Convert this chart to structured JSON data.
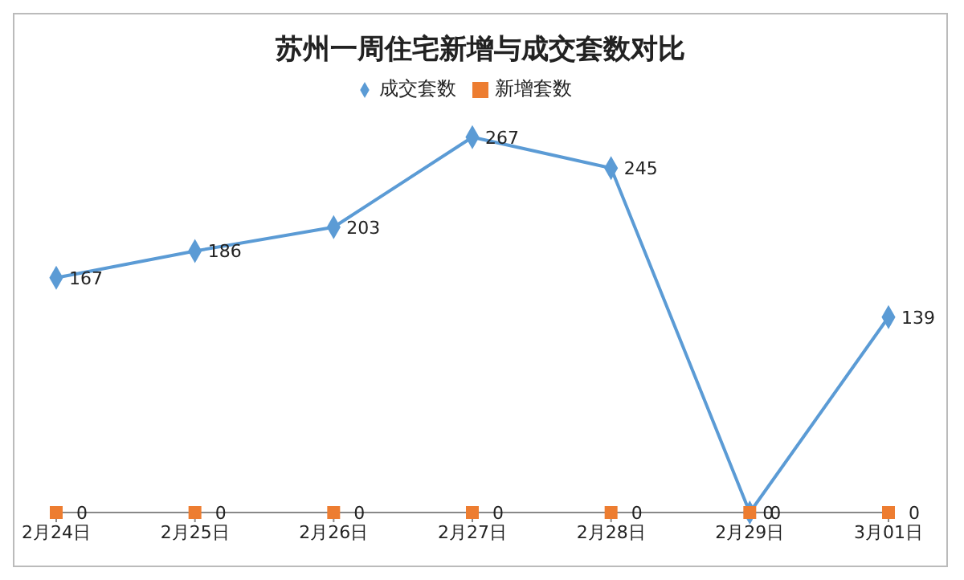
{
  "chart_data": {
    "type": "line",
    "title": "苏州一周住宅新增与成交套数对比",
    "categories": [
      "2月24日",
      "2月25日",
      "2月26日",
      "2月27日",
      "2月28日",
      "2月29日",
      "3月01日"
    ],
    "series": [
      {
        "name": "成交套数",
        "color": "#5b9bd5",
        "marker": "diamond",
        "values": [
          167,
          186,
          203,
          267,
          245,
          0,
          139
        ]
      },
      {
        "name": "新增套数",
        "color": "#ed7d31",
        "type": "scatter",
        "marker": "square",
        "values": [
          0,
          0,
          0,
          0,
          0,
          0,
          0
        ]
      }
    ],
    "data_labels": true,
    "legend": "top",
    "grid": false,
    "tick_labels": "x"
  }
}
